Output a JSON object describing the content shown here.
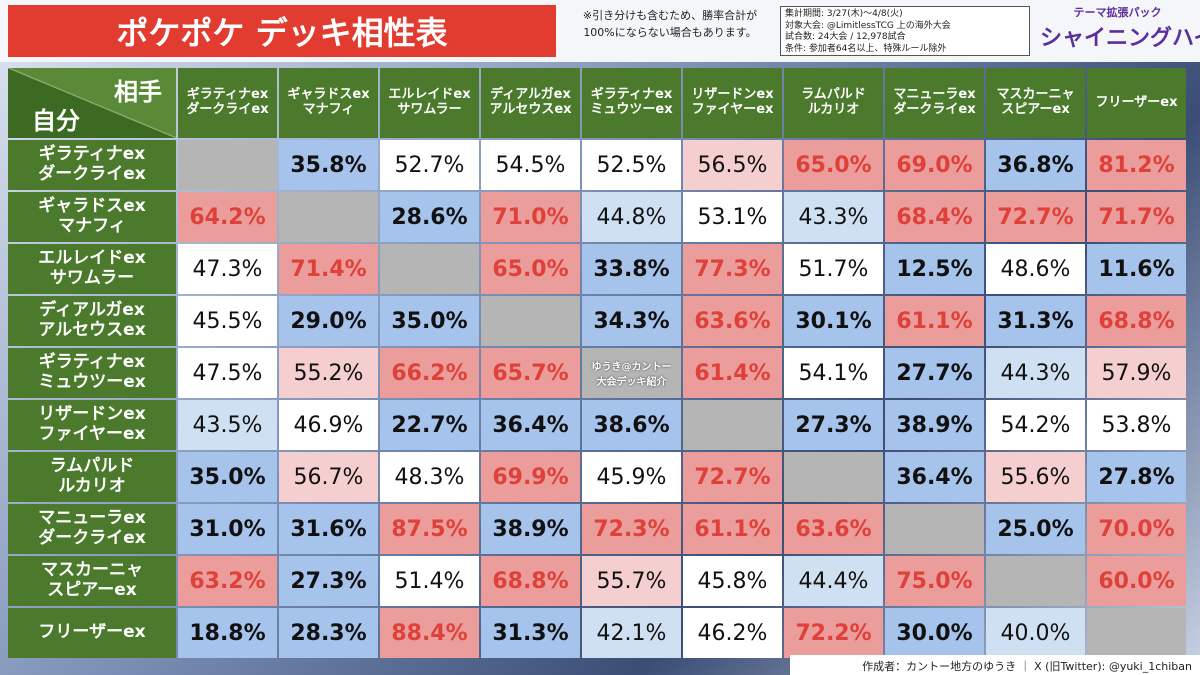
{
  "header": {
    "title": "ポケポケ デッキ相性表",
    "note": [
      "※引き分けも含むため、勝率合計が",
      "100%にならない場合もあります。"
    ],
    "info": [
      "集計期間: 3/27(木)〜4/8(火)",
      "対象大会: @LimitlessTCG 上の海外大会",
      "試合数: 24大会 / 12,978試合",
      "条件: 参加者64名以上、特殊ルール除外"
    ],
    "logo": [
      "テーマ拡張パック",
      "シャイニングハイ"
    ]
  },
  "table": {
    "corner_top": "相手",
    "corner_bottom": "自分",
    "columns": [
      [
        "ギラティナex",
        "ダークライex"
      ],
      [
        "ギャラドスex",
        "マナフィ"
      ],
      [
        "エルレイドex",
        "サワムラー"
      ],
      [
        "ディアルガex",
        "アルセウスex"
      ],
      [
        "ギラティナex",
        "ミュウツーex"
      ],
      [
        "リザードンex",
        "ファイヤーex"
      ],
      [
        "ラムパルド",
        "ルカリオ"
      ],
      [
        "マニューラex",
        "ダークライex"
      ],
      [
        "マスカーニャ",
        "スピアーex"
      ],
      [
        "フリーザーex"
      ]
    ],
    "rows": [
      [
        "ギラティナex",
        "ダークライex"
      ],
      [
        "ギャラドスex",
        "マナフィ"
      ],
      [
        "エルレイドex",
        "サワムラー"
      ],
      [
        "ディアルガex",
        "アルセウスex"
      ],
      [
        "ギラティナex",
        "ミュウツーex"
      ],
      [
        "リザードンex",
        "ファイヤーex"
      ],
      [
        "ラムパルド",
        "ルカリオ"
      ],
      [
        "マニューラex",
        "ダークライex"
      ],
      [
        "マスカーニャ",
        "スピアーex"
      ],
      [
        "フリーザーex"
      ]
    ],
    "cells": [
      [
        null,
        "35.8%",
        "52.7%",
        "54.5%",
        "52.5%",
        "56.5%",
        "65.0%",
        "69.0%",
        "36.8%",
        "81.2%"
      ],
      [
        "64.2%",
        null,
        "28.6%",
        "71.0%",
        "44.8%",
        "53.1%",
        "43.3%",
        "68.4%",
        "72.7%",
        "71.7%"
      ],
      [
        "47.3%",
        "71.4%",
        null,
        "65.0%",
        "33.8%",
        "77.3%",
        "51.7%",
        "12.5%",
        "48.6%",
        "11.6%"
      ],
      [
        "45.5%",
        "29.0%",
        "35.0%",
        null,
        "34.3%",
        "63.6%",
        "30.1%",
        "61.1%",
        "31.3%",
        "68.8%"
      ],
      [
        "47.5%",
        "55.2%",
        "66.2%",
        "65.7%",
        null,
        "61.4%",
        "54.1%",
        "27.7%",
        "44.3%",
        "57.9%"
      ],
      [
        "43.5%",
        "46.9%",
        "22.7%",
        "36.4%",
        "38.6%",
        null,
        "27.3%",
        "38.9%",
        "54.2%",
        "53.8%"
      ],
      [
        "35.0%",
        "56.7%",
        "48.3%",
        "69.9%",
        "45.9%",
        "72.7%",
        null,
        "36.4%",
        "55.6%",
        "27.8%"
      ],
      [
        "31.0%",
        "31.6%",
        "87.5%",
        "38.9%",
        "72.3%",
        "61.1%",
        "63.6%",
        null,
        "25.0%",
        "70.0%"
      ],
      [
        "63.2%",
        "27.3%",
        "51.4%",
        "68.8%",
        "55.7%",
        "45.8%",
        "44.4%",
        "75.0%",
        null,
        "60.0%"
      ],
      [
        "18.8%",
        "28.3%",
        "88.4%",
        "31.3%",
        "42.1%",
        "46.2%",
        "72.2%",
        "30.0%",
        "40.0%",
        null
      ]
    ],
    "watermark": [
      "ゆうき@カントー",
      "大会デッキ紹介"
    ]
  },
  "footer": {
    "credit": "作成者：カントー地方のゆうき ｜ X (旧Twitter): @yuki_1chiban"
  }
}
